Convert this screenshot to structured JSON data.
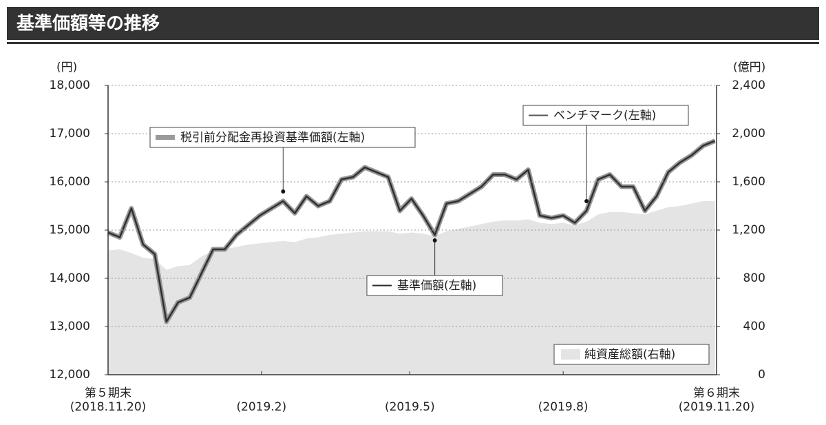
{
  "chart_data": {
    "type": "line",
    "title": "基準価額等の推移",
    "y_unit": "(円)",
    "y2_unit": "(億円)",
    "x": [
      0,
      7,
      14,
      21,
      28,
      35,
      42,
      49,
      56,
      63,
      70,
      77,
      84,
      91,
      98,
      105,
      112,
      119,
      126,
      133,
      140,
      147,
      154,
      161,
      168,
      175,
      182,
      189,
      196,
      203,
      210,
      217,
      224,
      231,
      238,
      245,
      252,
      259,
      266,
      273,
      280,
      287,
      294,
      301,
      308,
      315,
      322,
      329,
      336,
      343,
      350,
      357,
      364
    ],
    "xlim": [
      0,
      365
    ],
    "xticks": [
      {
        "value": 0,
        "label": [
          "第５期末",
          "(2018.11.20)"
        ]
      },
      {
        "value": 92,
        "label": [
          "(2019.2)"
        ]
      },
      {
        "value": 181,
        "label": [
          "(2019.5)"
        ]
      },
      {
        "value": 273,
        "label": [
          "(2019.8)"
        ]
      },
      {
        "value": 365,
        "label": [
          "第６期末",
          "(2019.11.20)"
        ]
      }
    ],
    "ylim": [
      12000,
      18000
    ],
    "yticks": [
      {
        "value": 12000,
        "label": "12,000"
      },
      {
        "value": 13000,
        "label": "13,000"
      },
      {
        "value": 14000,
        "label": "14,000"
      },
      {
        "value": 15000,
        "label": "15,000"
      },
      {
        "value": 16000,
        "label": "16,000"
      },
      {
        "value": 17000,
        "label": "17,000"
      },
      {
        "value": 18000,
        "label": "18,000"
      }
    ],
    "y2lim": [
      0,
      2400
    ],
    "y2ticks": [
      0,
      400,
      800,
      {
        "value": 1200,
        "label": "1,200"
      },
      {
        "value": 1600,
        "label": "1,600"
      },
      {
        "value": 2000,
        "label": "2,000"
      },
      {
        "value": 2400,
        "label": "2,400"
      }
    ],
    "grid": true,
    "series": [
      {
        "name": "純資産総額(右軸)",
        "type": "area",
        "axis": "y2",
        "color": "#e4e4e4",
        "values": [
          1030,
          1040,
          1010,
          970,
          960,
          870,
          900,
          910,
          980,
          1030,
          1040,
          1060,
          1080,
          1090,
          1100,
          1110,
          1100,
          1130,
          1140,
          1160,
          1170,
          1180,
          1190,
          1190,
          1190,
          1170,
          1180,
          1170,
          1150,
          1190,
          1210,
          1230,
          1250,
          1270,
          1280,
          1280,
          1290,
          1260,
          1250,
          1260,
          1240,
          1270,
          1330,
          1350,
          1350,
          1340,
          1330,
          1360,
          1390,
          1400,
          1420,
          1440,
          1440
        ]
      },
      {
        "name": "税引前分配金再投資基準価額(左軸)",
        "type": "line",
        "color": "#9a9a9a",
        "values": [
          14950,
          14850,
          15450,
          14700,
          14500,
          13100,
          13500,
          13600,
          14100,
          14600,
          14600,
          14900,
          15100,
          15300,
          15450,
          15600,
          15350,
          15700,
          15500,
          15600,
          16050,
          16100,
          16300,
          16200,
          16100,
          15400,
          15650,
          15300,
          14900,
          15550,
          15600,
          15750,
          15900,
          16150,
          16150,
          16050,
          16250,
          15300,
          15250,
          15300,
          15150,
          15400,
          16050,
          16150,
          15900,
          15900,
          15400,
          15700,
          16200,
          16400,
          16550,
          16750,
          16850
        ]
      },
      {
        "name": "ベンチマーク(左軸)",
        "type": "line",
        "color": "#555555",
        "values": [
          14950,
          14850,
          15450,
          14700,
          14500,
          13100,
          13500,
          13600,
          14100,
          14600,
          14600,
          14900,
          15100,
          15300,
          15450,
          15600,
          15350,
          15700,
          15500,
          15600,
          16050,
          16100,
          16300,
          16200,
          16100,
          15400,
          15650,
          15300,
          14900,
          15550,
          15600,
          15750,
          15900,
          16150,
          16150,
          16050,
          16250,
          15300,
          15250,
          15300,
          15150,
          15400,
          16050,
          16150,
          15900,
          15900,
          15400,
          15700,
          16200,
          16400,
          16550,
          16750,
          16850
        ]
      },
      {
        "name": "基準価額(左軸)",
        "type": "line",
        "color": "#2a2a2a",
        "values": [
          14950,
          14850,
          15450,
          14700,
          14500,
          13100,
          13500,
          13600,
          14100,
          14600,
          14600,
          14900,
          15100,
          15300,
          15450,
          15600,
          15350,
          15700,
          15500,
          15600,
          16050,
          16100,
          16300,
          16200,
          16100,
          15400,
          15650,
          15300,
          14900,
          15550,
          15600,
          15750,
          15900,
          16150,
          16150,
          16050,
          16250,
          15300,
          15250,
          15300,
          15150,
          15400,
          16050,
          16150,
          15900,
          15900,
          15400,
          15700,
          16200,
          16400,
          16550,
          16750,
          16850
        ]
      }
    ]
  }
}
